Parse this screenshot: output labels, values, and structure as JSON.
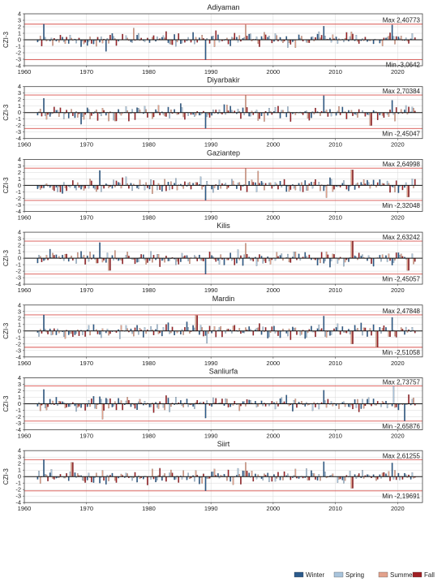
{
  "chart_data": [
    {
      "type": "bar",
      "title": "Adiyaman",
      "ylabel": "CZI-3",
      "xlim": [
        1960,
        2024
      ],
      "ylim": [
        -4,
        4
      ],
      "x_ticks": [
        1960,
        1970,
        1980,
        1990,
        2000,
        2010,
        2020
      ],
      "y_ticks": [
        -4,
        -3,
        -2,
        -1,
        0,
        1,
        2,
        3,
        4
      ],
      "max_label": "Max 2,40773",
      "min_label": "Min -3,0642",
      "max": 2.40773,
      "min": -3.0642,
      "grid": true,
      "seed": 11,
      "events": [
        [
          1963.0,
          2.40773
        ],
        [
          1989.0,
          -3.0642
        ],
        [
          1973.0,
          -1.8
        ],
        [
          1977.5,
          1.8
        ],
        [
          1995.4,
          2.3
        ],
        [
          2008.0,
          2.1
        ],
        [
          2019.1,
          2.3
        ],
        [
          2002.2,
          -1.2
        ]
      ]
    },
    {
      "type": "bar",
      "title": "Diyarbakir",
      "ylabel": "CZI-3",
      "xlim": [
        1960,
        2024
      ],
      "ylim": [
        -4,
        4
      ],
      "x_ticks": [
        1960,
        1970,
        1980,
        1990,
        2000,
        2010,
        2020
      ],
      "y_ticks": [
        -4,
        -3,
        -2,
        -1,
        0,
        1,
        2,
        3,
        4
      ],
      "max_label": "Max 2,70384",
      "min_label": "Min -2,45047",
      "max": 2.70384,
      "min": -2.45047,
      "grid": true,
      "seed": 23,
      "events": [
        [
          1995.4,
          2.70384
        ],
        [
          1989.1,
          -2.45047
        ],
        [
          1963.0,
          2.2
        ],
        [
          2008.0,
          2.6
        ],
        [
          2015.6,
          -2.0
        ],
        [
          2019.1,
          1.9
        ],
        [
          1969.0,
          -1.8
        ],
        [
          1974.6,
          -1.3
        ]
      ]
    },
    {
      "type": "bar",
      "title": "Gaziantep",
      "ylabel": "CZI-3",
      "xlim": [
        1960,
        2024
      ],
      "ylim": [
        -4,
        4
      ],
      "x_ticks": [
        1960,
        1970,
        1980,
        1990,
        2000,
        2010,
        2020
      ],
      "y_ticks": [
        -4,
        -3,
        -2,
        -1,
        0,
        1,
        2,
        3,
        4
      ],
      "max_label": "Max 2,64998",
      "min_label": "Min -2,32048",
      "max": 2.64998,
      "min": -2.32048,
      "grid": true,
      "seed": 37,
      "events": [
        [
          1995.4,
          2.64998
        ],
        [
          1989.1,
          -2.32048
        ],
        [
          1972.0,
          2.3
        ],
        [
          2012.6,
          2.4
        ],
        [
          1997.4,
          2.2
        ],
        [
          2021.6,
          -1.8
        ],
        [
          2008.4,
          -1.9
        ]
      ]
    },
    {
      "type": "bar",
      "title": "Kilis",
      "ylabel": "CZI-3",
      "xlim": [
        1960,
        2024
      ],
      "ylim": [
        -4,
        4
      ],
      "x_ticks": [
        1960,
        1970,
        1980,
        1990,
        2000,
        2010,
        2020
      ],
      "y_ticks": [
        -4,
        -3,
        -2,
        -1,
        0,
        1,
        2,
        3,
        4
      ],
      "max_label": "Max 2,63242",
      "min_label": "Min -2,45057",
      "max": 2.63242,
      "min": -2.45057,
      "grid": true,
      "seed": 41,
      "events": [
        [
          2012.6,
          2.63242
        ],
        [
          1989.1,
          -2.45057
        ],
        [
          1972.0,
          2.4
        ],
        [
          1995.4,
          2.3
        ],
        [
          1973.6,
          -1.9
        ],
        [
          2021.6,
          -1.9
        ]
      ]
    },
    {
      "type": "bar",
      "title": "Mardin",
      "ylabel": "CZI-3",
      "xlim": [
        1960,
        2024
      ],
      "ylim": [
        -4,
        4
      ],
      "x_ticks": [
        1960,
        1970,
        1980,
        1990,
        2000,
        2010,
        2020
      ],
      "y_ticks": [
        -4,
        -3,
        -2,
        -1,
        0,
        1,
        2,
        3,
        4
      ],
      "max_label": "Max 2,47848",
      "min_label": "Min -2,51058",
      "max": 2.47848,
      "min": -2.51058,
      "grid": true,
      "seed": 53,
      "events": [
        [
          1963.0,
          2.47848
        ],
        [
          2016.6,
          -2.51058
        ],
        [
          1987.6,
          2.4
        ],
        [
          2008.0,
          2.3
        ],
        [
          1989.2,
          -1.9
        ],
        [
          2012.6,
          -2.0
        ],
        [
          2019.1,
          2.1
        ]
      ]
    },
    {
      "type": "bar",
      "title": "Sanliurfa",
      "ylabel": "CZI-3",
      "xlim": [
        1960,
        2024
      ],
      "ylim": [
        -4,
        4
      ],
      "x_ticks": [
        1960,
        1970,
        1980,
        1990,
        2000,
        2010,
        2020
      ],
      "y_ticks": [
        -4,
        -3,
        -2,
        -1,
        0,
        1,
        2,
        3,
        4
      ],
      "max_label": "Max 2,73757",
      "min_label": "Min -2,65876",
      "max": 2.73757,
      "min": -2.65876,
      "grid": true,
      "seed": 67,
      "events": [
        [
          2019.3,
          2.73757
        ],
        [
          2021.1,
          -2.65876
        ],
        [
          1963.0,
          2.2
        ],
        [
          2008.0,
          2.1
        ],
        [
          1972.4,
          -2.4
        ],
        [
          1989.1,
          -2.2
        ]
      ]
    },
    {
      "type": "bar",
      "title": "Siirt",
      "ylabel": "CZI-3",
      "xlim": [
        1960,
        2024
      ],
      "ylim": [
        -4,
        4
      ],
      "x_ticks": [
        1960,
        1970,
        1980,
        1990,
        2000,
        2010,
        2020
      ],
      "y_ticks": [
        -4,
        -3,
        -2,
        -1,
        0,
        1,
        2,
        3,
        4
      ],
      "max_label": "Max 2,61255",
      "min_label": "Min -2,19691",
      "max": 2.61255,
      "min": -2.19691,
      "grid": true,
      "seed": 79,
      "events": [
        [
          1963.0,
          2.61255
        ],
        [
          1989.1,
          -2.19691
        ],
        [
          1967.6,
          2.2
        ],
        [
          1995.4,
          2.2
        ],
        [
          2008.0,
          2.3
        ],
        [
          2019.1,
          2.1
        ],
        [
          2012.6,
          -1.8
        ]
      ]
    }
  ],
  "legend": {
    "placement": "bottom-right",
    "entries": [
      {
        "name": "Winter",
        "color": "#2b5b8c"
      },
      {
        "name": "Spring",
        "color": "#a9c4dc"
      },
      {
        "name": "Summer",
        "color": "#e3a28c"
      },
      {
        "name": "Fall",
        "color": "#a01f24"
      }
    ]
  },
  "colors": {
    "threshold_line": "#d9534f",
    "grid": "#d8d8d8",
    "zero_line": "#111111",
    "bar_outline": "#333333"
  }
}
